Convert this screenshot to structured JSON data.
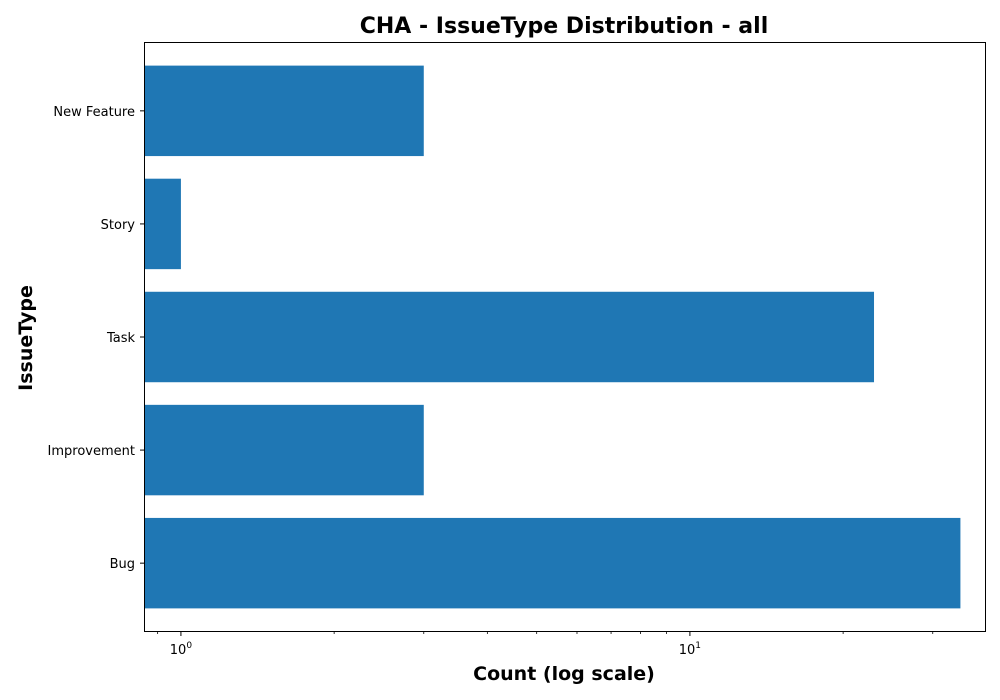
{
  "chart_data": {
    "type": "bar",
    "orientation": "horizontal",
    "title": "CHA - IssueType Distribution - all",
    "xlabel": "Count (log scale)",
    "ylabel": "IssueType",
    "x_scale": "log",
    "xlim": [
      0.85,
      38
    ],
    "categories": [
      "Bug",
      "Improvement",
      "Task",
      "Story",
      "New Feature"
    ],
    "values": [
      34,
      3,
      23,
      1,
      3
    ],
    "major_ticks": [
      {
        "value": 1,
        "base": "10",
        "exponent": "0"
      },
      {
        "value": 10,
        "base": "10",
        "exponent": "1"
      }
    ],
    "bar_color": "#1f77b4",
    "grid": false,
    "legend": "none"
  }
}
